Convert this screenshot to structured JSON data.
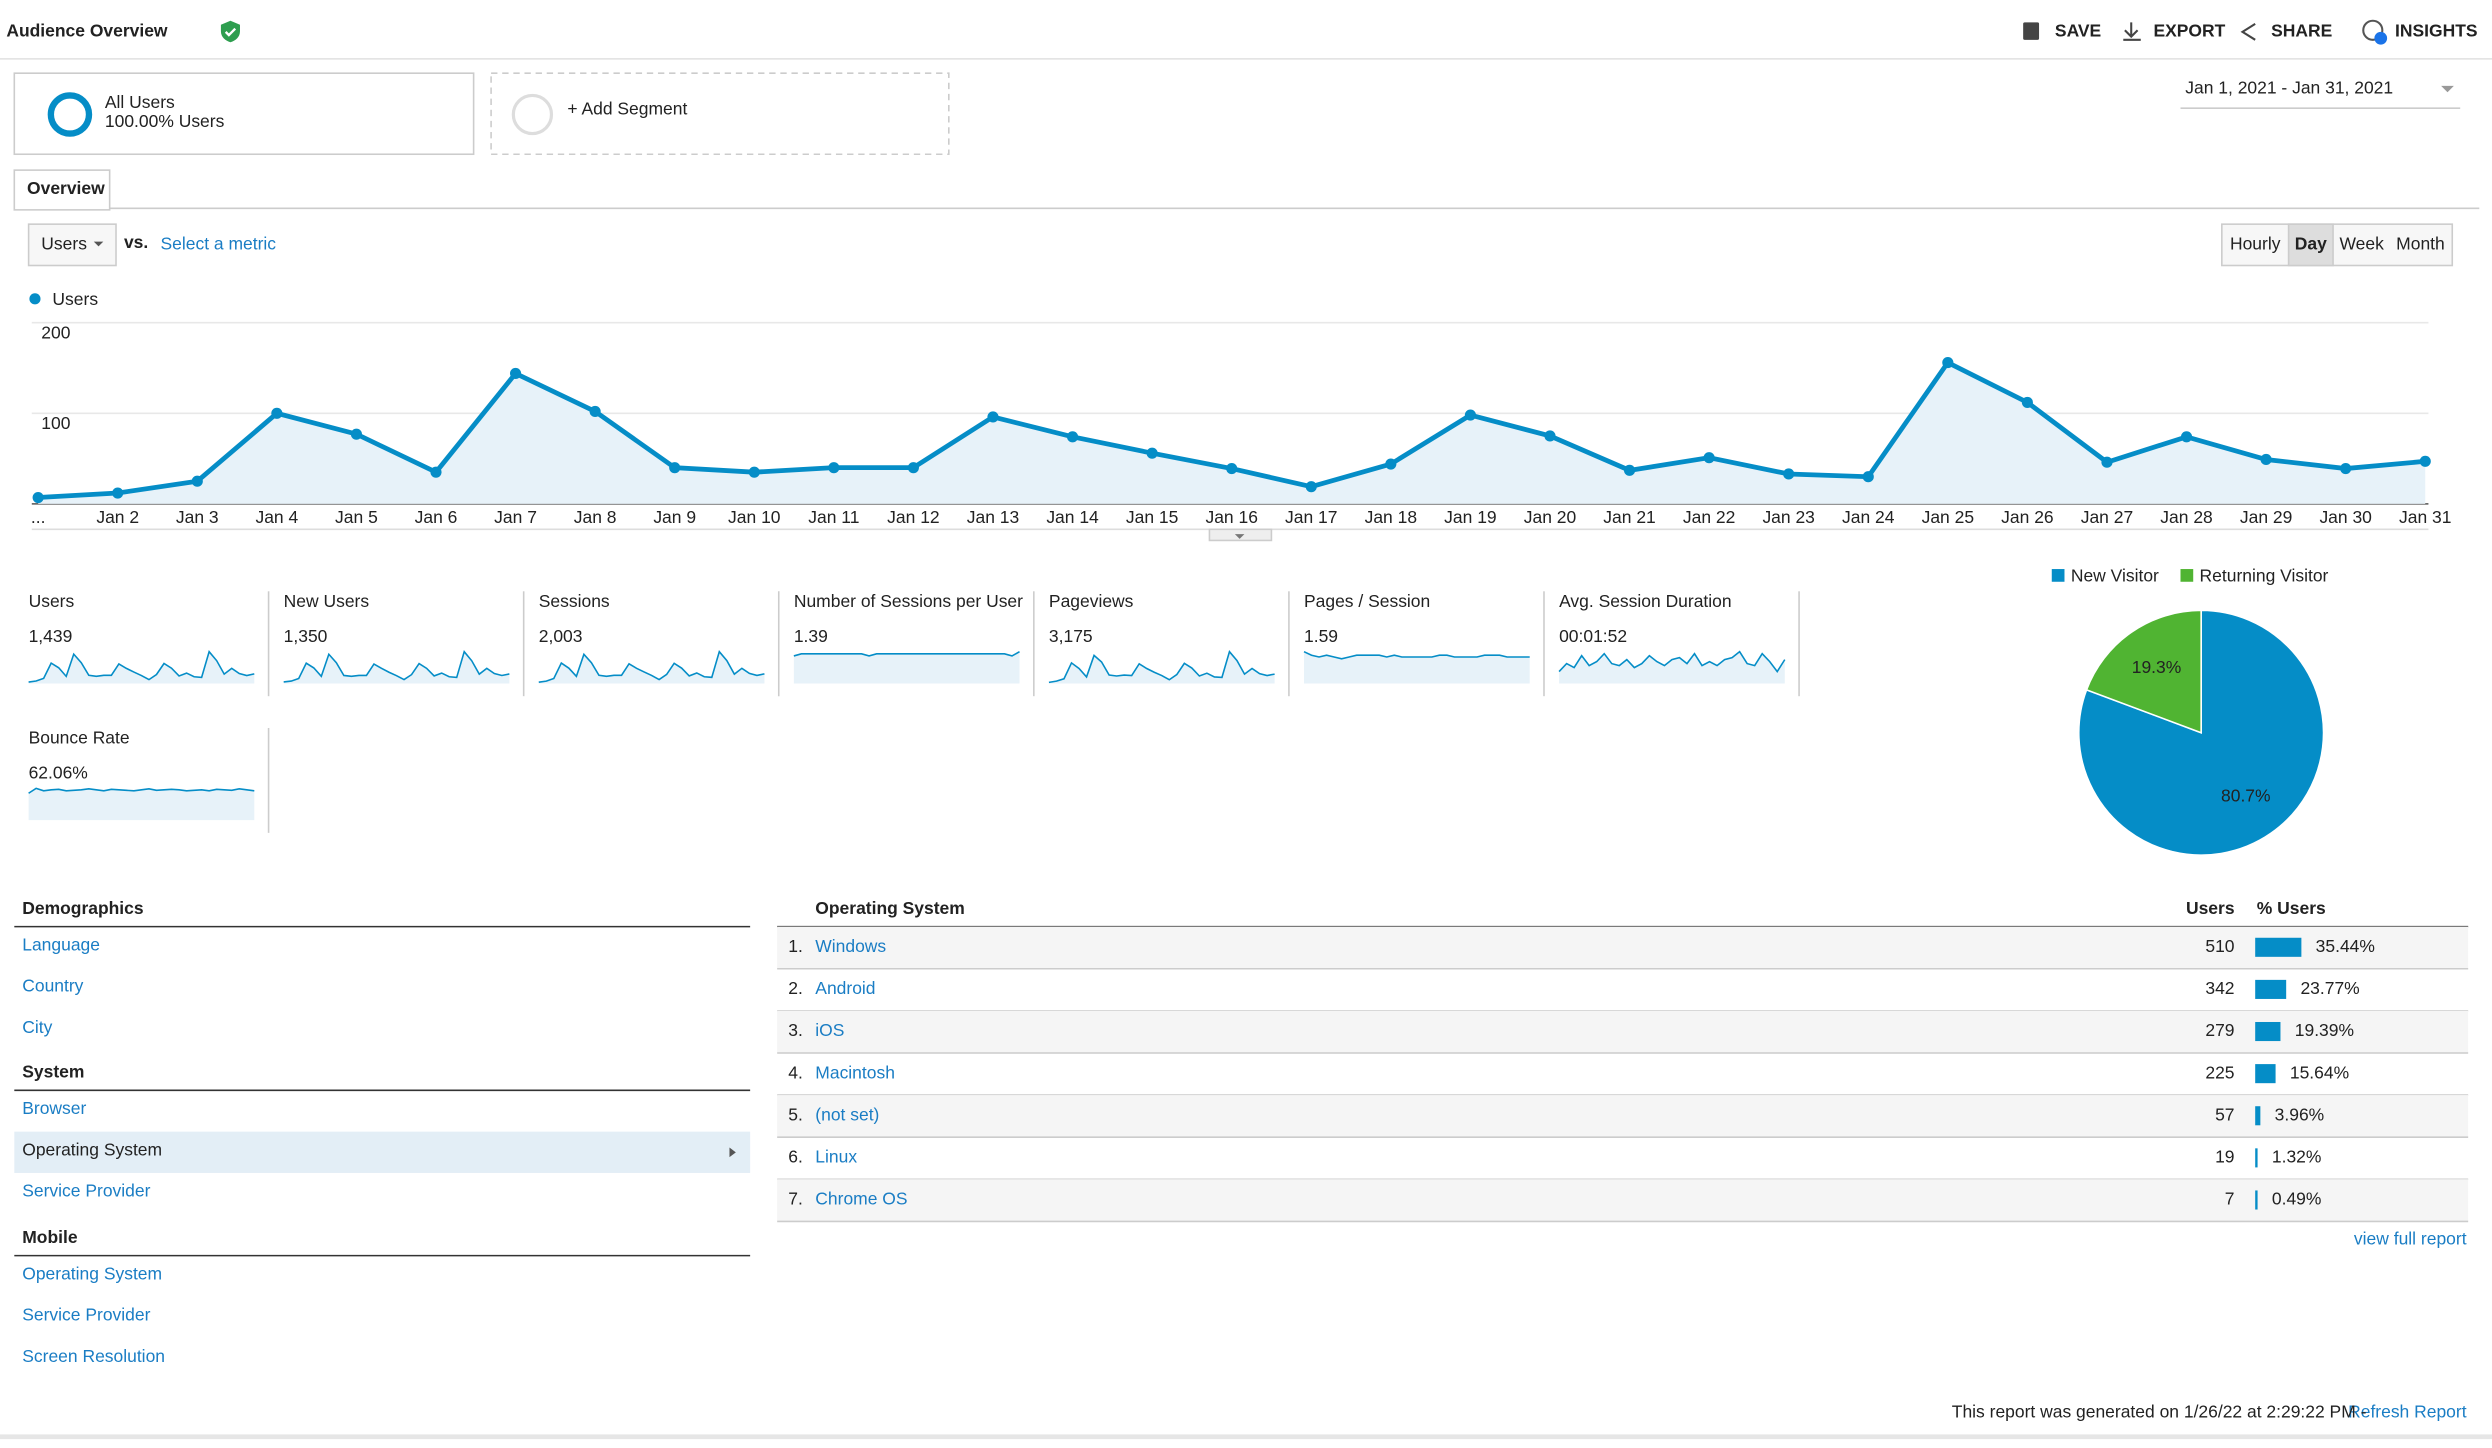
{
  "header": {
    "title": "Audience Overview",
    "actions": [
      "SAVE",
      "EXPORT",
      "SHARE",
      "INSIGHTS"
    ]
  },
  "segments": {
    "name": "All Users",
    "subtitle": "100.00% Users",
    "add": "+ Add Segment"
  },
  "date_range": "Jan 1, 2021 - Jan 31, 2021",
  "tab": "Overview",
  "controls": {
    "metric": "Users",
    "vs": "vs.",
    "select_metric": "Select a metric",
    "granularity": [
      "Hourly",
      "Day",
      "Week",
      "Month"
    ]
  },
  "chart_data": [
    {
      "type": "line",
      "categories": [
        "...",
        "Jan 2",
        "Jan 3",
        "Jan 4",
        "Jan 5",
        "Jan 6",
        "Jan 7",
        "Jan 8",
        "Jan 9",
        "Jan 10",
        "Jan 11",
        "Jan 12",
        "Jan 13",
        "Jan 14",
        "Jan 15",
        "Jan 16",
        "Jan 17",
        "Jan 18",
        "Jan 19",
        "Jan 20",
        "Jan 21",
        "Jan 22",
        "Jan 23",
        "Jan 24",
        "Jan 25",
        "Jan 26",
        "Jan 27",
        "Jan 28",
        "Jan 29",
        "Jan 30",
        "Jan 31"
      ],
      "series": [
        {
          "name": "Users",
          "color": "#058dc7",
          "values": [
            7,
            12,
            25,
            100,
            77,
            35,
            144,
            102,
            40,
            35,
            40,
            40,
            96,
            74,
            56,
            39,
            19,
            44,
            98,
            75,
            37,
            51,
            33,
            30,
            156,
            112,
            46,
            74,
            49,
            39,
            47
          ]
        }
      ],
      "ylim": [
        0,
        200
      ],
      "yticks": [
        100,
        200
      ],
      "grid": true
    },
    {
      "type": "pie",
      "categories": [
        "New Visitor",
        "Returning Visitor"
      ],
      "values": [
        80.7,
        19.3
      ],
      "value_labels": [
        "80.7%",
        "19.3%"
      ],
      "colors": [
        "#058dc7",
        "#50b432"
      ]
    }
  ],
  "metrics": [
    {
      "label": "Users",
      "value": "1,439"
    },
    {
      "label": "New Users",
      "value": "1,350",
      "trend": [
        7,
        11,
        23,
        94,
        72,
        33,
        135,
        96,
        37,
        33,
        37,
        37,
        90,
        70,
        52,
        36,
        18,
        41,
        92,
        70,
        35,
        48,
        31,
        28,
        147,
        105,
        43,
        70,
        46,
        37,
        44
      ]
    },
    {
      "label": "Sessions",
      "value": "2,003",
      "trend": [
        9,
        16,
        34,
        140,
        105,
        49,
        200,
        142,
        56,
        49,
        56,
        56,
        135,
        104,
        79,
        55,
        27,
        62,
        138,
        105,
        52,
        72,
        46,
        42,
        218,
        157,
        64,
        104,
        69,
        55,
        66
      ]
    },
    {
      "label": "Number of Sessions per User",
      "value": "1.39",
      "trend": [
        1.3,
        1.4,
        1.4,
        1.4,
        1.4,
        1.4,
        1.4,
        1.4,
        1.4,
        1.4,
        1.3,
        1.4,
        1.4,
        1.4,
        1.4,
        1.4,
        1.4,
        1.4,
        1.4,
        1.4,
        1.4,
        1.4,
        1.4,
        1.4,
        1.4,
        1.4,
        1.4,
        1.4,
        1.4,
        1.3,
        1.5
      ]
    },
    {
      "label": "Pageviews",
      "value": "3,175",
      "trend": [
        12,
        25,
        50,
        220,
        160,
        70,
        300,
        230,
        90,
        80,
        90,
        85,
        210,
        160,
        120,
        85,
        40,
        95,
        215,
        165,
        80,
        110,
        70,
        65,
        340,
        245,
        100,
        160,
        105,
        85,
        100
      ]
    },
    {
      "label": "Pages / Session",
      "value": "1.59",
      "trend": [
        1.8,
        1.6,
        1.5,
        1.6,
        1.5,
        1.4,
        1.5,
        1.6,
        1.6,
        1.6,
        1.6,
        1.5,
        1.6,
        1.5,
        1.5,
        1.5,
        1.5,
        1.5,
        1.6,
        1.6,
        1.5,
        1.5,
        1.5,
        1.5,
        1.6,
        1.6,
        1.6,
        1.5,
        1.5,
        1.5,
        1.5
      ]
    },
    {
      "label": "Avg. Session Duration",
      "value": "00:01:52",
      "trend": [
        60,
        100,
        80,
        140,
        90,
        110,
        150,
        100,
        90,
        120,
        80,
        100,
        140,
        110,
        90,
        120,
        130,
        100,
        150,
        90,
        110,
        90,
        120,
        130,
        160,
        100,
        90,
        150,
        110,
        60,
        120
      ]
    },
    {
      "label": "Bounce Rate",
      "value": "62.06%",
      "trend": [
        55,
        65,
        60,
        62,
        63,
        60,
        61,
        62,
        64,
        62,
        60,
        63,
        62,
        61,
        60,
        62,
        64,
        61,
        62,
        63,
        62,
        60,
        61,
        62,
        60,
        63,
        62,
        61,
        64,
        62,
        60
      ]
    }
  ],
  "nav": [
    {
      "title": "Demographics",
      "items": [
        "Language",
        "Country",
        "City"
      ]
    },
    {
      "title": "System",
      "items": [
        "Browser",
        "Operating System",
        "Service Provider"
      ]
    },
    {
      "title": "Mobile",
      "items": [
        "Operating System",
        "Service Provider",
        "Screen Resolution"
      ]
    }
  ],
  "table": {
    "headers": [
      "Operating System",
      "Users",
      "% Users"
    ],
    "rows": [
      {
        "rank": "1.",
        "name": "Windows",
        "users": 510,
        "pct": 35.44,
        "pct_label": "35.44%"
      },
      {
        "rank": "2.",
        "name": "Android",
        "users": 342,
        "pct": 23.77,
        "pct_label": "23.77%"
      },
      {
        "rank": "3.",
        "name": "iOS",
        "users": 279,
        "pct": 19.39,
        "pct_label": "19.39%"
      },
      {
        "rank": "4.",
        "name": "Macintosh",
        "users": 225,
        "pct": 15.64,
        "pct_label": "15.64%"
      },
      {
        "rank": "5.",
        "name": "(not set)",
        "users": 57,
        "pct": 3.96,
        "pct_label": "3.96%"
      },
      {
        "rank": "6.",
        "name": "Linux",
        "users": 19,
        "pct": 1.32,
        "pct_label": "1.32%"
      },
      {
        "rank": "7.",
        "name": "Chrome OS",
        "users": 7,
        "pct": 0.49,
        "pct_label": "0.49%"
      }
    ],
    "link": "view full report"
  },
  "footer": {
    "text": "This report was generated on 1/26/22 at 2:29:22 PM -",
    "link": "Refresh Report"
  }
}
